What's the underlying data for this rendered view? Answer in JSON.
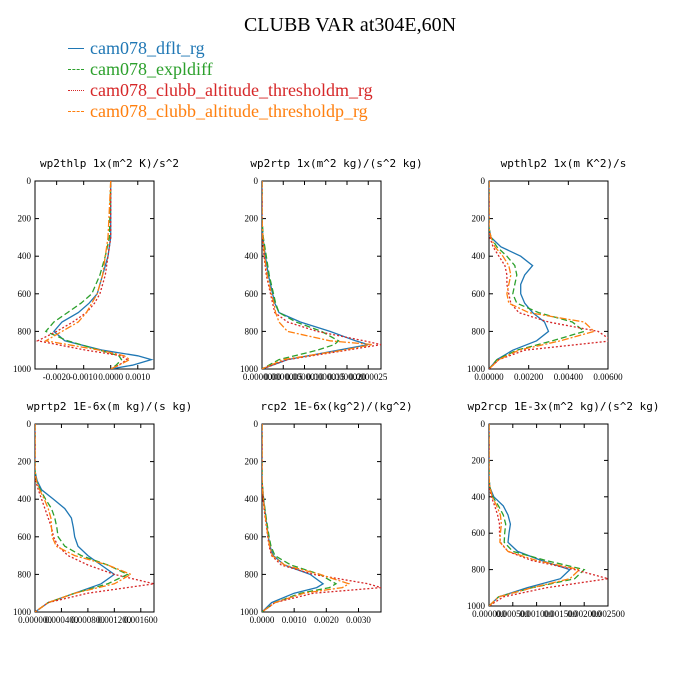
{
  "title": "CLUBB VAR at304E,60N",
  "legend": [
    {
      "label": "cam078_dflt_rg",
      "color": "#1f77b4",
      "dash": "solid"
    },
    {
      "label": "cam078_expldiff",
      "color": "#2ca02c",
      "dash": "dashed"
    },
    {
      "label": "cam078_clubb_altitude_thresholdm_rg",
      "color": "#d62728",
      "dash": "dotted"
    },
    {
      "label": "cam078_clubb_altitude_thresholdp_rg",
      "color": "#ff7f0e",
      "dash": "dashdot"
    }
  ],
  "chart_data": [
    {
      "type": "line",
      "title": "wp2thlp  1x(m^2 K)/s^2",
      "xlim": [
        -0.0028,
        0.0016
      ],
      "ylim": [
        1000,
        0
      ],
      "xticks": [
        -0.002,
        -0.001,
        0,
        0.001
      ],
      "xtick_labels": [
        "-0.0020",
        "-0.0010",
        "0.0000",
        "0.0010"
      ],
      "yticks": [
        0,
        200,
        400,
        600,
        800,
        1000
      ],
      "ytick_labels": [
        "0",
        "200",
        "400",
        "600",
        "800",
        "1000"
      ],
      "y": [
        0,
        300,
        400,
        500,
        600,
        650,
        700,
        750,
        800,
        850,
        900,
        930,
        950,
        980,
        1000
      ],
      "series": [
        {
          "name": "cam078_dflt_rg",
          "values": [
            0,
            0,
            -0.0001,
            -0.0003,
            -0.0005,
            -0.0008,
            -0.0012,
            -0.0018,
            -0.0021,
            -0.0017,
            -0.0003,
            0.001,
            0.0015,
            0.0008,
            0
          ]
        },
        {
          "name": "cam078_expldiff",
          "values": [
            0,
            -5e-05,
            -0.0002,
            -0.0004,
            -0.0007,
            -0.0011,
            -0.0016,
            -0.0021,
            -0.0024,
            -0.0016,
            -0.0004,
            0.0003,
            0.0004,
            0.0002,
            0
          ]
        },
        {
          "name": "cam078_clubb_altitude_thresholdm_rg",
          "values": [
            0,
            0,
            -0.0001,
            -0.0002,
            -0.0004,
            -0.0006,
            -0.0009,
            -0.0014,
            -0.002,
            -0.0027,
            -0.0009,
            0.0004,
            0.0006,
            0.0003,
            0
          ]
        },
        {
          "name": "cam078_clubb_altitude_thresholdp_rg",
          "values": [
            0,
            -0.0001,
            -0.0002,
            -0.0003,
            -0.0005,
            -0.0007,
            -0.0009,
            -0.0012,
            -0.0018,
            -0.0024,
            -0.0004,
            0.0005,
            0.0007,
            0.0003,
            0
          ]
        }
      ]
    },
    {
      "type": "line",
      "title": "wp2rtp  1x(m^2 kg)/(s^2 kg)",
      "xlim": [
        0,
        2.8e-06
      ],
      "ylim": [
        1000,
        0
      ],
      "xticks": [
        0,
        5e-07,
        1e-06,
        1.5e-06,
        2e-06,
        2.5e-06
      ],
      "xtick_labels": [
        "0.0000000",
        "0.0000005",
        "0.0000010",
        "0.0000015",
        "0.0000020",
        "0.0000025"
      ],
      "yticks": [
        0,
        200,
        400,
        600,
        800,
        1000
      ],
      "ytick_labels": [
        "0",
        "200",
        "400",
        "600",
        "800",
        "1000"
      ],
      "y": [
        0,
        200,
        300,
        400,
        500,
        600,
        650,
        700,
        750,
        800,
        850,
        870,
        900,
        950,
        1000
      ],
      "series": [
        {
          "name": "cam078_dflt_rg",
          "values": [
            0,
            0,
            2e-08,
            8e-08,
            1.5e-07,
            2.5e-07,
            3e-07,
            4e-07,
            9e-07,
            1.6e-06,
            2.2e-06,
            2.5e-06,
            1.8e-06,
            6e-07,
            0
          ]
        },
        {
          "name": "cam078_expldiff",
          "values": [
            0,
            0,
            3e-08,
            1e-07,
            1.7e-07,
            2.7e-07,
            3.2e-07,
            4e-07,
            8e-07,
            1.4e-06,
            1.8e-06,
            1.7e-06,
            1.3e-06,
            4e-07,
            0
          ]
        },
        {
          "name": "cam078_clubb_altitude_thresholdm_rg",
          "values": [
            0,
            0,
            1e-08,
            5e-08,
            1e-07,
            2e-07,
            2.5e-07,
            3e-07,
            6e-07,
            1.3e-06,
            2.4e-06,
            2.8e-06,
            2e-06,
            6e-07,
            0
          ]
        },
        {
          "name": "cam078_clubb_altitude_thresholdp_rg",
          "values": [
            0,
            0,
            2e-08,
            6e-08,
            1.2e-07,
            2.2e-07,
            2.8e-07,
            3.2e-07,
            4e-07,
            6e-07,
            1.6e-06,
            2.6e-06,
            1.9e-06,
            5e-07,
            0
          ]
        }
      ]
    },
    {
      "type": "line",
      "title": "wpthlp2  1x(m K^2)/s",
      "xlim": [
        0,
        0.006
      ],
      "ylim": [
        1000,
        0
      ],
      "xticks": [
        0,
        0.002,
        0.004,
        0.006
      ],
      "xtick_labels": [
        "0.00000",
        "0.00200",
        "0.00400",
        "0.00600"
      ],
      "yticks": [
        0,
        200,
        400,
        600,
        800,
        1000
      ],
      "ytick_labels": [
        "0",
        "200",
        "400",
        "600",
        "800",
        "1000"
      ],
      "y": [
        0,
        250,
        300,
        350,
        400,
        450,
        500,
        550,
        600,
        650,
        700,
        750,
        800,
        850,
        900,
        950,
        1000
      ],
      "series": [
        {
          "name": "cam078_dflt_rg",
          "values": [
            0,
            0,
            0.0001,
            0.0006,
            0.0016,
            0.0022,
            0.0018,
            0.0016,
            0.0016,
            0.0018,
            0.0022,
            0.0028,
            0.003,
            0.0024,
            0.0012,
            0.0004,
            0
          ]
        },
        {
          "name": "cam078_expldiff",
          "values": [
            0,
            0,
            0.0001,
            0.0004,
            0.0009,
            0.0013,
            0.0014,
            0.0013,
            0.0012,
            0.0014,
            0.0025,
            0.0042,
            0.0048,
            0.0032,
            0.0014,
            0.0004,
            0
          ]
        },
        {
          "name": "cam078_clubb_altitude_thresholdm_rg",
          "values": [
            0,
            0,
            5e-05,
            0.0002,
            0.0005,
            0.0008,
            0.0009,
            0.0009,
            0.001,
            0.0011,
            0.0015,
            0.003,
            0.0055,
            0.0062,
            0.0018,
            0.0005,
            0
          ]
        },
        {
          "name": "cam078_clubb_altitude_thresholdp_rg",
          "values": [
            0,
            0,
            0.0001,
            0.0003,
            0.0007,
            0.001,
            0.0011,
            0.001,
            0.0009,
            0.001,
            0.002,
            0.0048,
            0.0053,
            0.0036,
            0.0015,
            0.0005,
            0
          ]
        }
      ]
    },
    {
      "type": "line",
      "title": "wprtp2  1E-6x(m kg)/(s kg)",
      "xlim": [
        0,
        0.0018
      ],
      "ylim": [
        1000,
        0
      ],
      "xticks": [
        0,
        0.0004,
        0.0008,
        0.0012,
        0.0016
      ],
      "xtick_labels": [
        "0.000000",
        "0.000400",
        "0.000800",
        "0.001200",
        "0.001600"
      ],
      "yticks": [
        0,
        200,
        400,
        600,
        800,
        1000
      ],
      "ytick_labels": [
        "0",
        "200",
        "400",
        "600",
        "800",
        "1000"
      ],
      "y": [
        0,
        250,
        300,
        350,
        400,
        450,
        500,
        550,
        600,
        650,
        700,
        750,
        800,
        850,
        900,
        950,
        1000
      ],
      "series": [
        {
          "name": "cam078_dflt_rg",
          "values": [
            0,
            0,
            3e-05,
            0.0001,
            0.00028,
            0.00045,
            0.00055,
            0.00058,
            0.0006,
            0.00065,
            0.0008,
            0.001,
            0.0012,
            0.001,
            0.0006,
            0.0002,
            0
          ]
        },
        {
          "name": "cam078_expldiff",
          "values": [
            0,
            0,
            2e-05,
            8e-05,
            0.00016,
            0.00025,
            0.0003,
            0.00033,
            0.00035,
            0.00045,
            0.0007,
            0.0011,
            0.0014,
            0.0011,
            0.0006,
            0.0002,
            0
          ]
        },
        {
          "name": "cam078_clubb_altitude_thresholdm_rg",
          "values": [
            0,
            0,
            1e-05,
            5e-05,
            0.0001,
            0.00015,
            0.0002,
            0.00025,
            0.00028,
            0.00035,
            0.0005,
            0.0008,
            0.0012,
            0.0018,
            0.0008,
            0.0002,
            0
          ]
        },
        {
          "name": "cam078_clubb_altitude_thresholdp_rg",
          "values": [
            0,
            0,
            2e-05,
            7e-05,
            0.00014,
            0.0002,
            0.00024,
            0.00025,
            0.00026,
            0.00032,
            0.0006,
            0.0011,
            0.00145,
            0.0012,
            0.0006,
            0.0002,
            0
          ]
        }
      ]
    },
    {
      "type": "line",
      "title": "rcp2  1E-6x(kg^2)/(kg^2)",
      "xlim": [
        0,
        0.0037
      ],
      "ylim": [
        1000,
        0
      ],
      "xticks": [
        0,
        0.001,
        0.002,
        0.003
      ],
      "xtick_labels": [
        "0.0000",
        "0.0010",
        "0.0020",
        "0.0030"
      ],
      "yticks": [
        0,
        200,
        400,
        600,
        800,
        1000
      ],
      "ytick_labels": [
        "0",
        "200",
        "400",
        "600",
        "800",
        "1000"
      ],
      "y": [
        0,
        300,
        400,
        500,
        600,
        650,
        700,
        750,
        800,
        850,
        870,
        900,
        950,
        1000
      ],
      "series": [
        {
          "name": "cam078_dflt_rg",
          "values": [
            0,
            0,
            5e-05,
            0.00012,
            0.0002,
            0.00025,
            0.00035,
            0.0007,
            0.0015,
            0.0019,
            0.0017,
            0.001,
            0.0003,
            0
          ]
        },
        {
          "name": "cam078_expldiff",
          "values": [
            0,
            0,
            5e-05,
            0.00013,
            0.00022,
            0.00028,
            0.0004,
            0.0009,
            0.0018,
            0.0023,
            0.0021,
            0.0012,
            0.0004,
            0
          ]
        },
        {
          "name": "cam078_clubb_altitude_thresholdm_rg",
          "values": [
            0,
            0,
            3e-05,
            0.0001,
            0.00018,
            0.00022,
            0.0003,
            0.0006,
            0.0016,
            0.0033,
            0.0037,
            0.0016,
            0.0004,
            0
          ]
        },
        {
          "name": "cam078_clubb_altitude_thresholdp_rg",
          "values": [
            0,
            0,
            4e-05,
            0.00011,
            0.00019,
            0.00024,
            0.00032,
            0.0007,
            0.0018,
            0.0027,
            0.0025,
            0.0013,
            0.0004,
            0
          ]
        }
      ]
    },
    {
      "type": "line",
      "title": "wp2rcp  1E-3x(m^2 kg)/(s^2 kg)",
      "xlim": [
        0,
        0.0025
      ],
      "ylim": [
        1000,
        0
      ],
      "xticks": [
        0,
        0.0005,
        0.001,
        0.0015,
        0.002,
        0.0025
      ],
      "xtick_labels": [
        "0.000000",
        "0.000500",
        "0.001000",
        "0.001500",
        "0.002000",
        "0.002500"
      ],
      "yticks": [
        0,
        200,
        400,
        600,
        800,
        1000
      ],
      "ytick_labels": [
        "0",
        "200",
        "400",
        "600",
        "800",
        "1000"
      ],
      "y": [
        0,
        300,
        350,
        400,
        450,
        500,
        550,
        600,
        650,
        700,
        750,
        800,
        850,
        900,
        950,
        1000
      ],
      "series": [
        {
          "name": "cam078_dflt_rg",
          "values": [
            0,
            0,
            2e-05,
            0.0001,
            0.0003,
            0.0004,
            0.00045,
            0.00042,
            0.0004,
            0.0006,
            0.0011,
            0.0017,
            0.0015,
            0.0008,
            0.0002,
            0
          ]
        },
        {
          "name": "cam078_expldiff",
          "values": [
            0,
            0,
            2e-05,
            8e-05,
            0.0002,
            0.0003,
            0.00035,
            0.00033,
            0.00032,
            0.0005,
            0.0012,
            0.002,
            0.0018,
            0.0009,
            0.0002,
            0
          ]
        },
        {
          "name": "cam078_clubb_altitude_thresholdm_rg",
          "values": [
            0,
            0,
            1e-05,
            5e-05,
            0.00012,
            0.00018,
            0.00022,
            0.00022,
            0.00024,
            0.0004,
            0.0009,
            0.0018,
            0.0025,
            0.0012,
            0.0003,
            0
          ]
        },
        {
          "name": "cam078_clubb_altitude_thresholdp_rg",
          "values": [
            0,
            0,
            2e-05,
            7e-05,
            0.00016,
            0.00024,
            0.00026,
            0.00024,
            0.00023,
            0.0004,
            0.001,
            0.0019,
            0.0017,
            0.0009,
            0.0002,
            0
          ]
        }
      ]
    }
  ]
}
